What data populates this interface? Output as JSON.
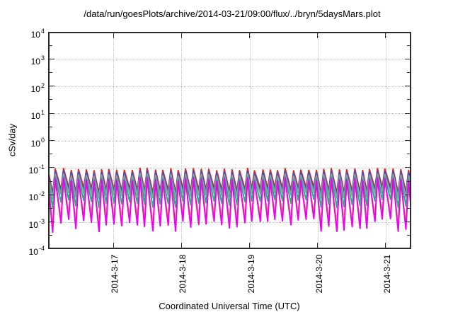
{
  "title": "/data/run/goesPlots/archive/2014-03-21/09:00/flux/../bryn/5daysMars.plot",
  "x_axis": {
    "label": "Coordinated Universal Time (UTC)",
    "tick_labels": [
      "2014-3-17",
      "2014-3-18",
      "2014-3-19",
      "2014-3-20",
      "2014-3-21"
    ],
    "tick_offsets_hours": [
      23,
      47,
      71,
      95,
      119
    ],
    "total_span_hours": 128
  },
  "y_axis": {
    "label": "cSv/day",
    "scale": "log",
    "tick_exponents": [
      4,
      3,
      2,
      1,
      0,
      -1,
      -2,
      -3,
      -4
    ]
  },
  "chart_data": {
    "type": "line",
    "title": "/data/run/goesPlots/archive/2014-03-21/09:00/flux/../bryn/5daysMars.plot",
    "xlabel": "Coordinated Universal Time (UTC)",
    "ylabel": "cSv/day",
    "x_range": [
      "2014-03-16 01:00",
      "2014-03-21 09:00"
    ],
    "ylim": [
      0.0001,
      10000
    ],
    "grid": true,
    "legend": "none",
    "waveform": "sawtooth oscillation, sharp rise then slower decay, approx 47 cycles over span",
    "oscillation_period_hours": 2.7,
    "num_cycles": 47,
    "rise_fraction": 0.34,
    "series": [
      {
        "name": "red",
        "color": "#e02a1c",
        "peak": 0.083,
        "trough": 0.014,
        "peak_jitter": 0.1,
        "trough_jitter": 0.25
      },
      {
        "name": "blue",
        "color": "#3553cc",
        "peak": 0.066,
        "trough": 0.011,
        "peak_jitter": 0.1,
        "trough_jitter": 0.25
      },
      {
        "name": "gray",
        "color": "#949ba3",
        "peak": 0.052,
        "trough": 0.009,
        "peak_jitter": 0.1,
        "trough_jitter": 0.25
      },
      {
        "name": "green",
        "color": "#17b589",
        "peak": 0.04,
        "trough": 0.0045,
        "peak_jitter": 0.12,
        "trough_jitter": 0.35
      },
      {
        "name": "yellow",
        "color": "#d8c832",
        "peak": 0.028,
        "trough": 0.0013,
        "peak_jitter": 0.12,
        "trough_jitter": 0.5
      },
      {
        "name": "magenta",
        "color": "#f000f0",
        "peak": 0.035,
        "trough": 0.0007,
        "peak_jitter": 0.14,
        "trough_jitter": 0.55
      }
    ]
  }
}
